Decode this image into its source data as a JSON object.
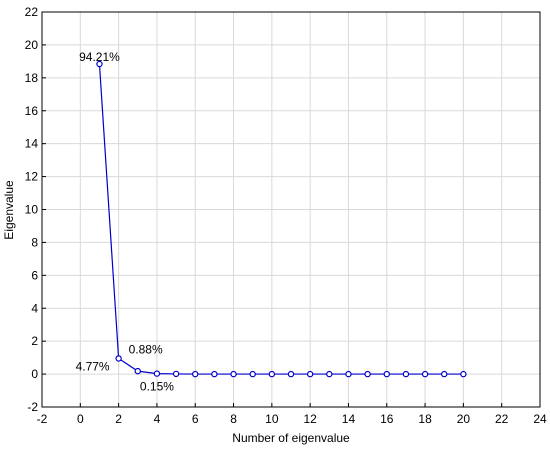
{
  "chart_data": {
    "type": "line",
    "title": "",
    "xlabel": "Number of eigenvalue",
    "ylabel": "Eigenvalue",
    "xlim": [
      -2,
      24
    ],
    "ylim": [
      -2,
      22
    ],
    "x_ticks": [
      -2,
      0,
      2,
      4,
      6,
      8,
      10,
      12,
      14,
      16,
      18,
      20,
      22,
      24
    ],
    "y_ticks": [
      -2,
      0,
      2,
      4,
      6,
      8,
      10,
      12,
      14,
      16,
      18,
      20,
      22
    ],
    "grid": true,
    "series": [
      {
        "x": [
          1,
          2,
          3,
          4,
          5,
          6,
          7,
          8,
          9,
          10,
          11,
          12,
          13,
          14,
          15,
          16,
          17,
          18,
          19,
          20
        ],
        "values": [
          18.84,
          0.95,
          0.18,
          0.03,
          0.01,
          0.0,
          0.0,
          0.0,
          0.0,
          0.0,
          0.0,
          0.0,
          0.0,
          0.0,
          0.0,
          0.0,
          0.0,
          0.0,
          0.0,
          0.0
        ]
      }
    ],
    "annotations": [
      {
        "text": "94.21%",
        "x": 1,
        "y": 18.84
      },
      {
        "text": "4.77%",
        "x": 2,
        "y": 0.95
      },
      {
        "text": "0.88%",
        "x": 2,
        "y": 0.95
      },
      {
        "text": "0.15%",
        "x": 4,
        "y": 0.03
      }
    ],
    "colors": {
      "series": "#0000cc",
      "grid": "#d9d9d9",
      "frame": "#000000"
    }
  }
}
